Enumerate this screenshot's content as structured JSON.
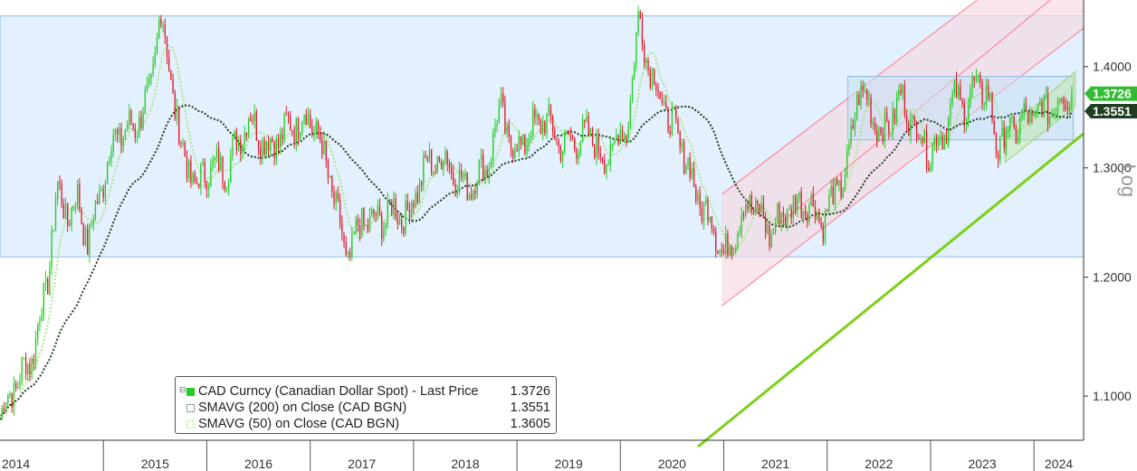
{
  "chart_data": {
    "type": "line",
    "subtype": "candlestick-with-moving-averages",
    "title": "",
    "xlabel": "",
    "ylabel": "",
    "scale_label": "Log",
    "y_scale": "log",
    "ylim": [
      1.065,
      1.47
    ],
    "xlim": [
      2014.0,
      2024.48
    ],
    "y_ticks": [
      "1.1000",
      "1.2000",
      "1.3000",
      "1.4000"
    ],
    "x_ticks": [
      "2014",
      "2015",
      "2016",
      "2017",
      "2018",
      "2019",
      "2020",
      "2021",
      "2022",
      "2023",
      "2024"
    ],
    "last_price_label": "1.3726",
    "sma200_label": "1.3551",
    "grid": false,
    "legend_position": "bottom-left",
    "price_anchors": [
      [
        2014.0,
        1.085
      ],
      [
        2014.15,
        1.11
      ],
      [
        2014.3,
        1.13
      ],
      [
        2014.45,
        1.19
      ],
      [
        2014.55,
        1.28
      ],
      [
        2014.65,
        1.255
      ],
      [
        2014.75,
        1.27
      ],
      [
        2014.85,
        1.23
      ],
      [
        2014.95,
        1.27
      ],
      [
        2015.1,
        1.33
      ],
      [
        2015.3,
        1.34
      ],
      [
        2015.45,
        1.37
      ],
      [
        2015.55,
        1.46
      ],
      [
        2015.65,
        1.39
      ],
      [
        2015.75,
        1.32
      ],
      [
        2015.9,
        1.28
      ],
      [
        2016.0,
        1.3
      ],
      [
        2016.2,
        1.3
      ],
      [
        2016.4,
        1.35
      ],
      [
        2016.6,
        1.32
      ],
      [
        2016.8,
        1.34
      ],
      [
        2016.95,
        1.35
      ],
      [
        2017.05,
        1.34
      ],
      [
        2017.2,
        1.285
      ],
      [
        2017.35,
        1.215
      ],
      [
        2017.5,
        1.25
      ],
      [
        2017.65,
        1.25
      ],
      [
        2017.8,
        1.26
      ],
      [
        2017.95,
        1.255
      ],
      [
        2018.1,
        1.3
      ],
      [
        2018.3,
        1.31
      ],
      [
        2018.5,
        1.28
      ],
      [
        2018.7,
        1.3
      ],
      [
        2018.85,
        1.36
      ],
      [
        2018.95,
        1.315
      ],
      [
        2019.1,
        1.33
      ],
      [
        2019.25,
        1.35
      ],
      [
        2019.45,
        1.32
      ],
      [
        2019.6,
        1.33
      ],
      [
        2019.75,
        1.33
      ],
      [
        2019.85,
        1.3
      ],
      [
        2019.95,
        1.33
      ],
      [
        2020.05,
        1.33
      ],
      [
        2020.18,
        1.45
      ],
      [
        2020.28,
        1.4
      ],
      [
        2020.45,
        1.35
      ],
      [
        2020.6,
        1.32
      ],
      [
        2020.75,
        1.27
      ],
      [
        2020.9,
        1.25
      ],
      [
        2021.0,
        1.215
      ],
      [
        2021.1,
        1.24
      ],
      [
        2021.25,
        1.27
      ],
      [
        2021.45,
        1.24
      ],
      [
        2021.6,
        1.26
      ],
      [
        2021.8,
        1.27
      ],
      [
        2021.95,
        1.25
      ],
      [
        2022.05,
        1.27
      ],
      [
        2022.2,
        1.3
      ],
      [
        2022.3,
        1.38
      ],
      [
        2022.4,
        1.36
      ],
      [
        2022.55,
        1.33
      ],
      [
        2022.7,
        1.37
      ],
      [
        2022.85,
        1.34
      ],
      [
        2023.0,
        1.315
      ],
      [
        2023.1,
        1.33
      ],
      [
        2023.25,
        1.37
      ],
      [
        2023.35,
        1.36
      ],
      [
        2023.45,
        1.385
      ],
      [
        2023.55,
        1.37
      ],
      [
        2023.65,
        1.32
      ],
      [
        2023.75,
        1.335
      ],
      [
        2023.9,
        1.345
      ],
      [
        2024.05,
        1.355
      ],
      [
        2024.2,
        1.36
      ],
      [
        2024.32,
        1.375
      ],
      [
        2024.38,
        1.3726
      ]
    ],
    "series": [
      {
        "name": "CAD Curncy (Canadian Dollar Spot) - Last Price",
        "last": "1.3726",
        "color": "#22cc22"
      },
      {
        "name": "SMAVG (200)  on Close (CAD BGN)",
        "last": "1.3551",
        "color": "#1f3d1f"
      },
      {
        "name": "SMAVG (50)  on Close (CAD BGN)",
        "last": "1.3605",
        "color": "#a9e68a"
      }
    ],
    "colors": {
      "up": "#22cc22",
      "down": "#e0192a",
      "sma200": "#1f3d1f",
      "sma50": "#a9e68a",
      "range_band": "#e3f0fd",
      "range_border": "#8fbce6",
      "channel_fill": "#f6d9e2",
      "channel_line": "#ff7a8e",
      "trend_line": "#7ccf18"
    }
  },
  "legend": {
    "row1_label": "CAD Curncy (Canadian Dollar Spot) - Last Price",
    "row1_value": "1.3726",
    "row2_label": "SMAVG (200)  on Close (CAD BGN)",
    "row2_value": "1.3551",
    "row3_label": "SMAVG (50)  on Close (CAD BGN)",
    "row3_value": "1.3605"
  }
}
